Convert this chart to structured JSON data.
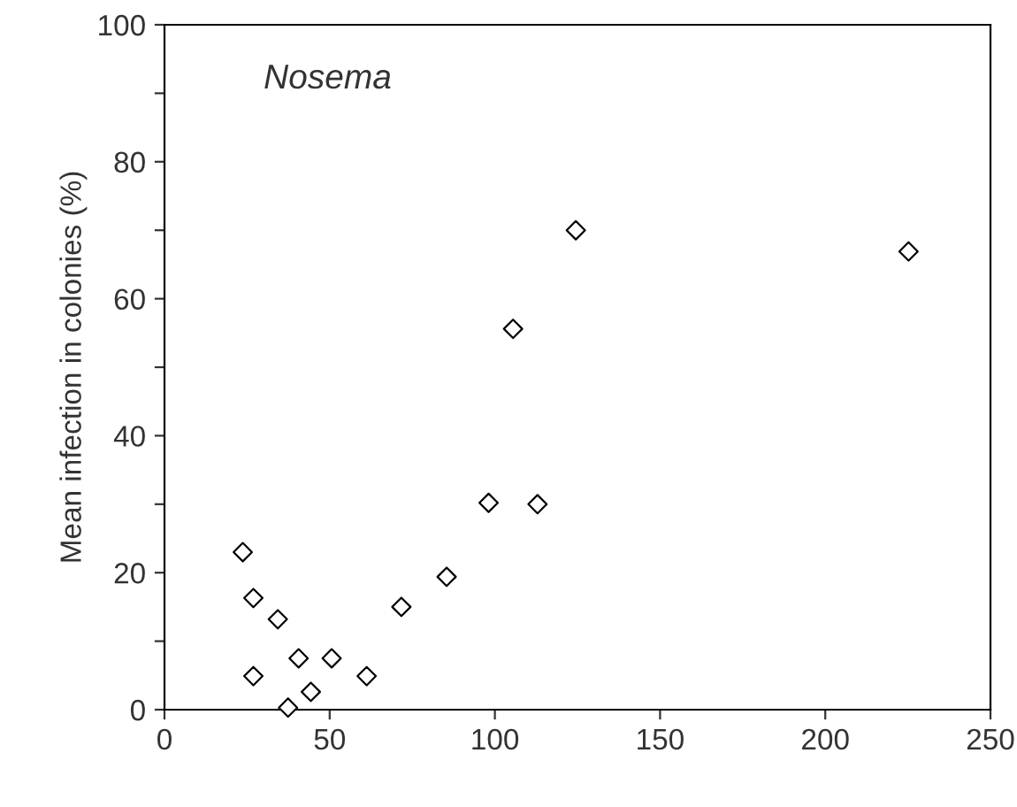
{
  "chart_data": {
    "type": "scatter",
    "ylabel": "Mean infection in colonies (%)",
    "annotations": [
      "Nosema"
    ],
    "xlim": [
      0,
      250
    ],
    "xticks": [
      0,
      50,
      100,
      150,
      200,
      250
    ],
    "ylim": [
      0,
      100
    ],
    "yticks": [
      0,
      {
        "value": 10,
        "label": null
      },
      20,
      {
        "value": 30,
        "label": null
      },
      40,
      {
        "value": 50,
        "label": null
      },
      60,
      {
        "value": 70,
        "label": null
      },
      80,
      {
        "value": 90,
        "label": null
      },
      100
    ],
    "marker": "diamond",
    "grid": false,
    "series": [
      {
        "color": "#000000",
        "x": [
          23.7,
          26.9,
          26.9,
          34.3,
          37.4,
          40.6,
          44.3,
          50.6,
          61.2,
          71.7,
          85.4,
          98.1,
          105.5,
          112.9,
          124.5,
          225.2
        ],
        "values": [
          23.0,
          16.3,
          4.9,
          13.2,
          0.3,
          7.5,
          2.6,
          7.5,
          4.9,
          15.0,
          19.4,
          30.2,
          55.6,
          30.0,
          70.0,
          66.9
        ]
      }
    ]
  }
}
